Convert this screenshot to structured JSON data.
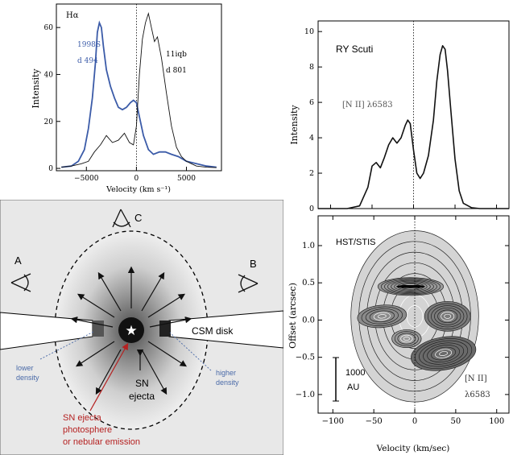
{
  "chart_data": [
    {
      "type": "line",
      "panel": "top-left",
      "title": "",
      "line_label": "Hα",
      "xlabel": "Velocity (km s⁻¹)",
      "ylabel": "Intensity",
      "xlim": [
        -8000,
        8500
      ],
      "ylim": [
        -1,
        70
      ],
      "xticks": [
        -5000,
        0,
        5000
      ],
      "yticks": [
        0,
        20,
        40,
        60
      ],
      "xtick_labels": [
        "−5000",
        "0",
        "5000"
      ],
      "ytick_labels": [
        "0",
        "20",
        "40",
        "60"
      ],
      "reference_line_x": 0,
      "series": [
        {
          "name": "1998S d 494",
          "label_lines": [
            "1998S",
            "d 494"
          ],
          "color": "#3b5ba8",
          "x": [
            -7500,
            -6500,
            -5800,
            -5200,
            -4800,
            -4400,
            -4100,
            -3900,
            -3700,
            -3500,
            -3300,
            -3000,
            -2600,
            -2200,
            -1800,
            -1400,
            -1000,
            -600,
            -300,
            0,
            300,
            700,
            1200,
            1700,
            2300,
            2900,
            3500,
            4200,
            5000,
            6000,
            7000,
            8000
          ],
          "values": [
            0.5,
            1,
            3,
            8,
            17,
            30,
            45,
            58,
            62,
            60,
            52,
            42,
            35,
            30,
            26,
            25,
            26,
            28,
            29,
            28,
            22,
            14,
            8,
            6,
            7,
            7,
            6,
            5,
            3,
            2,
            1,
            0.5
          ]
        },
        {
          "name": "11iqb d 801",
          "label_lines": [
            "11iqb",
            "d 801"
          ],
          "color": "#111111",
          "x": [
            -7500,
            -6500,
            -5500,
            -4800,
            -4200,
            -3600,
            -3000,
            -2400,
            -1800,
            -1200,
            -700,
            -300,
            0,
            300,
            600,
            900,
            1200,
            1500,
            1800,
            2100,
            2500,
            3000,
            3500,
            4000,
            4500,
            5000,
            5500,
            6000,
            7000,
            8000
          ],
          "values": [
            0.5,
            1,
            2,
            3,
            7,
            10,
            14,
            11,
            12,
            15,
            11,
            10,
            18,
            40,
            55,
            62,
            66,
            60,
            54,
            56,
            47,
            32,
            18,
            9,
            5,
            3,
            2,
            1,
            0.5,
            0.3
          ]
        }
      ]
    },
    {
      "type": "line",
      "panel": "top-right",
      "title": "RY Scuti",
      "line_label": "[N II] λ6583",
      "xlabel": "",
      "ylabel": "Intensity",
      "xlim": [
        -115,
        115
      ],
      "ylim": [
        0,
        10.6
      ],
      "yticks": [
        0,
        2,
        4,
        6,
        8,
        10
      ],
      "ytick_labels": [
        "0",
        "2",
        "4",
        "6",
        "8",
        "10"
      ],
      "reference_line_x": 0,
      "series": [
        {
          "name": "",
          "color": "#111111",
          "x": [
            -115,
            -80,
            -65,
            -55,
            -50,
            -45,
            -40,
            -35,
            -30,
            -25,
            -20,
            -15,
            -10,
            -7,
            -4,
            0,
            4,
            8,
            12,
            18,
            24,
            28,
            32,
            35,
            38,
            41,
            45,
            50,
            55,
            60,
            70,
            80,
            115
          ],
          "values": [
            0,
            0,
            0.15,
            1.2,
            2.4,
            2.6,
            2.3,
            2.9,
            3.6,
            4.0,
            3.7,
            4.0,
            4.7,
            5.0,
            4.8,
            3.3,
            2.0,
            1.7,
            2.0,
            3.0,
            5.0,
            7.2,
            8.7,
            9.2,
            9.0,
            7.8,
            5.5,
            2.8,
            1.0,
            0.3,
            0.05,
            0,
            0
          ]
        }
      ]
    },
    {
      "type": "heatmap",
      "panel": "bottom-right",
      "title": "HST/STIS",
      "line_label": [
        "[N II]",
        "λ6583"
      ],
      "scale_bar_label": [
        "1000",
        "AU"
      ],
      "xlabel": "Velocity (km/sec)",
      "ylabel": "Offset (arcsec)",
      "xlim": [
        -118,
        115
      ],
      "ylim": [
        -1.25,
        1.4
      ],
      "xticks": [
        -100,
        -50,
        0,
        50,
        100
      ],
      "yticks": [
        -1.0,
        -0.5,
        0.0,
        0.5,
        1.0
      ],
      "xtick_labels": [
        "−100",
        "−50",
        "0",
        "50",
        "100"
      ],
      "ytick_labels": [
        "−1.0",
        "−0.5",
        "0.0",
        "0.5",
        "1.0"
      ],
      "reference_line_x": 0
    }
  ],
  "schematic": {
    "labels": {
      "view_a": "A",
      "view_b": "B",
      "view_c": "C",
      "csm_disk": "CSM disk",
      "sn_ejecta": [
        "SN",
        "ejecta"
      ],
      "lower_density": [
        "lower",
        "density"
      ],
      "higher_density": [
        "higher",
        "density"
      ],
      "photosphere": [
        "SN ejecta",
        "photosphere",
        "or nebular emission"
      ]
    },
    "colors": {
      "background": "#e8e8e8",
      "blue_label": "#4a6aa8",
      "red_label": "#b52121"
    }
  }
}
